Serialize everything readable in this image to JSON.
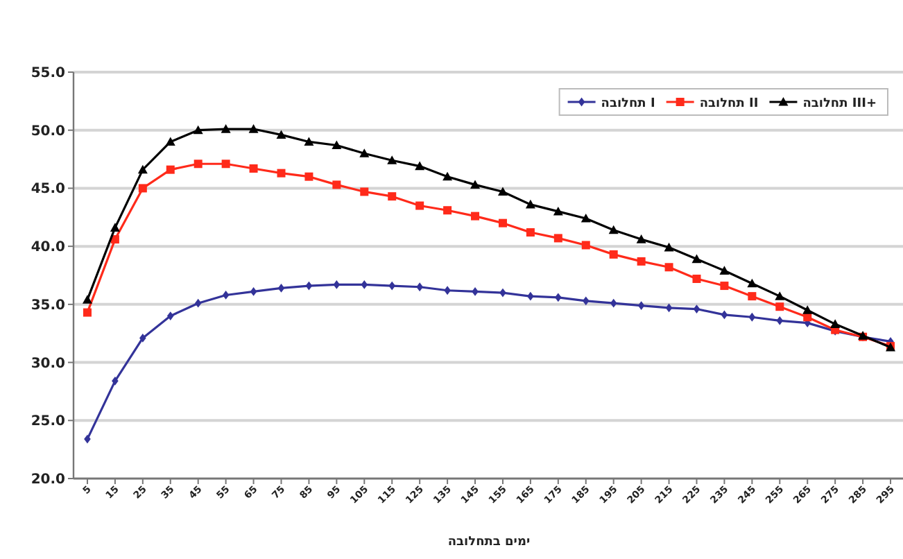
{
  "chart_data": {
    "type": "line",
    "xlabel": "ימים בתחלובה",
    "categories": [
      "5",
      "15",
      "25",
      "35",
      "45",
      "55",
      "65",
      "75",
      "85",
      "95",
      "105",
      "115",
      "125",
      "135",
      "145",
      "155",
      "165",
      "175",
      "185",
      "195",
      "205",
      "215",
      "225",
      "235",
      "245",
      "255",
      "265",
      "275",
      "285",
      "295"
    ],
    "series": [
      {
        "name": "תחלובה I",
        "color": "#333399",
        "marker": "diamond",
        "values": [
          23.4,
          28.4,
          32.1,
          34.0,
          35.1,
          35.8,
          36.1,
          36.4,
          36.6,
          36.7,
          36.7,
          36.6,
          36.5,
          36.2,
          36.1,
          36.0,
          35.7,
          35.6,
          35.3,
          35.1,
          34.9,
          34.7,
          34.6,
          34.1,
          33.9,
          33.6,
          33.4,
          32.7,
          32.2,
          31.8
        ]
      },
      {
        "name": "תחלובה II",
        "color": "#ff2a1a",
        "marker": "square",
        "values": [
          34.3,
          40.6,
          45.0,
          46.6,
          47.1,
          47.1,
          46.7,
          46.3,
          46.0,
          45.3,
          44.7,
          44.3,
          43.5,
          43.1,
          42.6,
          42.0,
          41.2,
          40.7,
          40.1,
          39.3,
          38.7,
          38.2,
          37.2,
          36.6,
          35.7,
          34.8,
          33.9,
          32.8,
          32.2,
          31.4
        ]
      },
      {
        "name": "תחלובה III+",
        "color": "#000000",
        "marker": "triangle",
        "values": [
          35.4,
          41.6,
          46.6,
          49.0,
          50.0,
          50.1,
          50.1,
          49.6,
          49.0,
          48.7,
          48.0,
          47.4,
          46.9,
          46.0,
          45.3,
          44.7,
          43.6,
          43.0,
          42.4,
          41.4,
          40.6,
          39.9,
          38.9,
          37.9,
          36.8,
          35.7,
          34.5,
          33.3,
          32.3,
          31.3
        ]
      }
    ],
    "ylim": [
      20,
      55
    ],
    "yticks": [
      {
        "value": 20,
        "label": "20.0"
      },
      {
        "value": 25,
        "label": "25.0"
      },
      {
        "value": 30,
        "label": "30.0"
      },
      {
        "value": 35,
        "label": "35.0"
      },
      {
        "value": 40,
        "label": "40.0"
      },
      {
        "value": 45,
        "label": "45.0"
      },
      {
        "value": 50,
        "label": "50.0"
      },
      {
        "value": 55,
        "label": "55.0"
      }
    ],
    "grid": "y",
    "legend": "top right",
    "line_style": "solid"
  }
}
